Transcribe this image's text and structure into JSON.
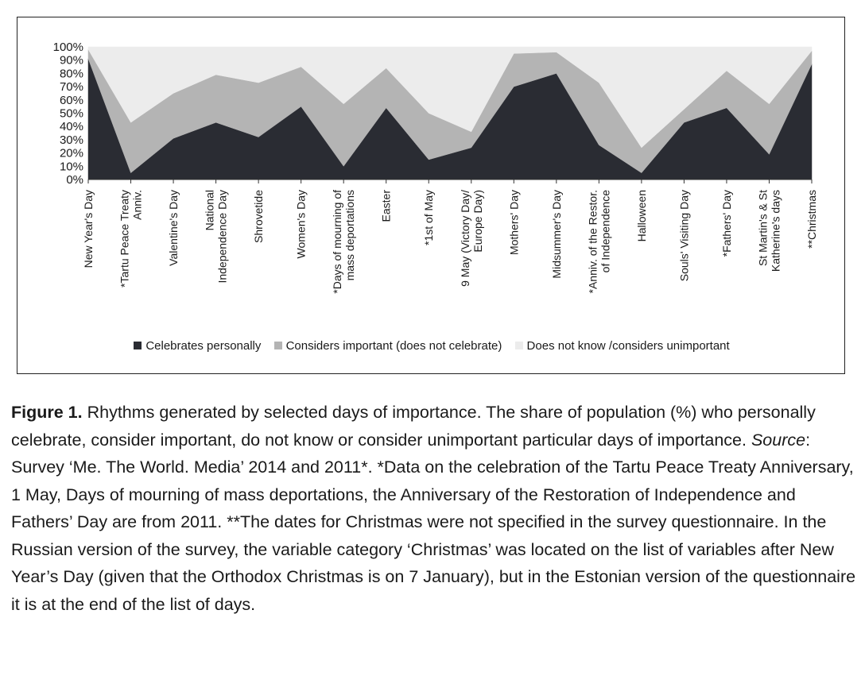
{
  "chart_data": {
    "type": "area",
    "stacked": true,
    "ylim": [
      0,
      100
    ],
    "y_ticks": [
      "0%",
      "10%",
      "20%",
      "30%",
      "40%",
      "50%",
      "60%",
      "70%",
      "80%",
      "90%",
      "100%"
    ],
    "categories": [
      [
        "New Year's Day"
      ],
      [
        "*Tartu Peace Treaty",
        "Anniv."
      ],
      [
        "Valentine's Day"
      ],
      [
        "National",
        "Independence Day"
      ],
      [
        "Shrovetide"
      ],
      [
        "Women's Day"
      ],
      [
        "*Days of mourning of",
        "mass deportations"
      ],
      [
        "Easter"
      ],
      [
        "*1st of May"
      ],
      [
        "9 May (Victory Day/",
        "Europe Day)"
      ],
      [
        "Mothers' Day"
      ],
      [
        "Midsummer's Day"
      ],
      [
        "*Anniv. of the Restor.",
        "of Independence"
      ],
      [
        "Halloween"
      ],
      [
        "Souls' Visiting Day"
      ],
      [
        "*Fathers' Day"
      ],
      [
        "St Martin's & St",
        "Katherine's days"
      ],
      [
        "**Christmas"
      ]
    ],
    "series": [
      {
        "name": "Celebrates personally",
        "color": "#2a2c33",
        "values": [
          91,
          5,
          31,
          43,
          32,
          55,
          10,
          54,
          15,
          24,
          70,
          80,
          26,
          5,
          43,
          54,
          19,
          87
        ]
      },
      {
        "name": "Considers important (does not celebrate)",
        "color": "#b4b4b4",
        "values": [
          7,
          38,
          34,
          36,
          41,
          30,
          47,
          30,
          35,
          12,
          25,
          16,
          47,
          19,
          10,
          28,
          38,
          10
        ]
      },
      {
        "name": "Does not know /considers unimportant",
        "color": "#ececec",
        "values": [
          2,
          57,
          35,
          21,
          27,
          15,
          43,
          16,
          50,
          64,
          5,
          4,
          27,
          76,
          47,
          18,
          43,
          3
        ]
      }
    ],
    "grid": false,
    "legend_position": "bottom"
  },
  "caption": {
    "label": "Figure 1.",
    "text_part1": " Rhythms generated by selected days of importance. The share of population (%) who personally celebrate, consider important, do not know or consider unimportant particular days of importance. ",
    "source_label": "Source",
    "text_part2": ": Survey ‘Me. The World. Media’ 2014 and 2011*. *Data on the celebration of the Tartu Peace Treaty Anniversary, 1 May, Days of mourning of mass deportations, the Anniversary of the Restoration of Independence and Fathers’ Day are from 2011. **The dates for Christmas were not specified in the survey questionnaire. In the Russian version of the survey, the variable category ‘Christmas’ was located on the list of variables after New Year’s Day (given that the Orthodox Christmas is on 7 January), but in the Estonian version of the questionnaire it is at the end of the list of days."
  }
}
